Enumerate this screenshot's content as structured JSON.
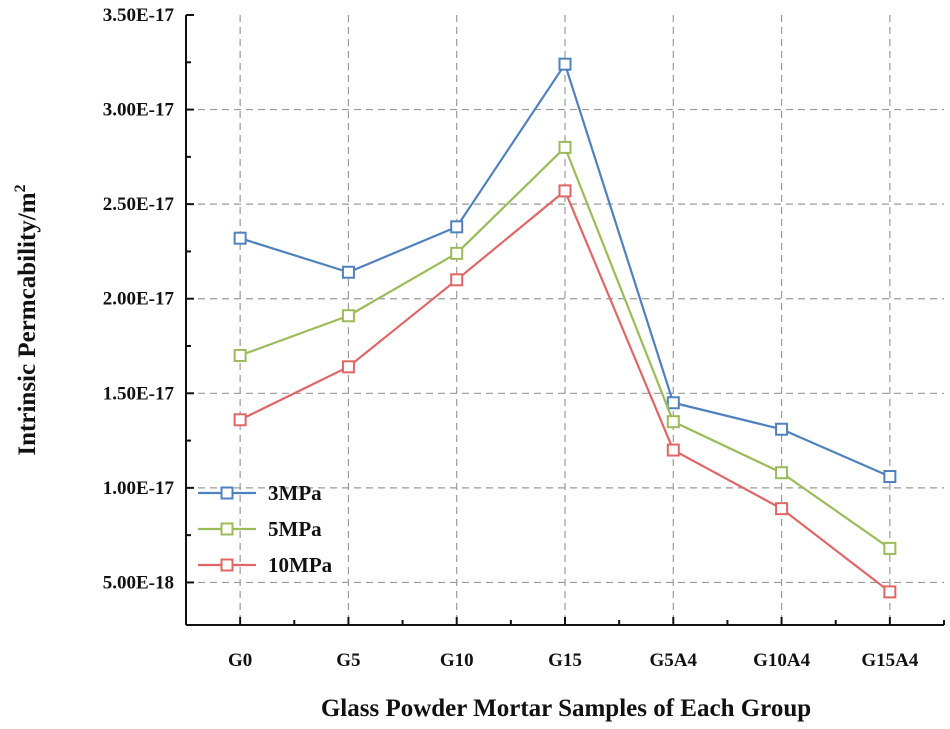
{
  "chart_data": {
    "type": "line",
    "title": "",
    "xlabel": "Glass Powder Mortar Samples of Each Group",
    "ylabel": "Intrinsic Permcability/m",
    "ylabel_sup": "2",
    "categories": [
      "G0",
      "G5",
      "G10",
      "G15",
      "G5A4",
      "G10A4",
      "G15A4"
    ],
    "ylim": [
      2.75e-18,
      3.5e-17
    ],
    "yticks": [
      5e-18,
      1e-17,
      1.5e-17,
      2e-17,
      2.5e-17,
      3e-17,
      3.5e-17
    ],
    "ytick_labels": [
      "5.00E-18",
      "1.00E-17",
      "1.50E-17",
      "2.00E-17",
      "2.50E-17",
      "3.00E-17",
      "3.50E-17"
    ],
    "grid": true,
    "legend_position": "bottom-left",
    "series": [
      {
        "name": "3MPa",
        "color": "#4f81bd",
        "values": [
          2.32e-17,
          2.14e-17,
          2.38e-17,
          3.24e-17,
          1.45e-17,
          1.31e-17,
          1.06e-17
        ]
      },
      {
        "name": "5MPa",
        "color": "#9bbb59",
        "values": [
          1.7e-17,
          1.91e-17,
          2.24e-17,
          2.8e-17,
          1.35e-17,
          1.08e-17,
          6.8e-18
        ]
      },
      {
        "name": "10MPa",
        "color": "#e06666",
        "values": [
          1.36e-17,
          1.64e-17,
          2.1e-17,
          2.57e-17,
          1.2e-17,
          8.9e-18,
          4.5e-18
        ]
      }
    ]
  }
}
